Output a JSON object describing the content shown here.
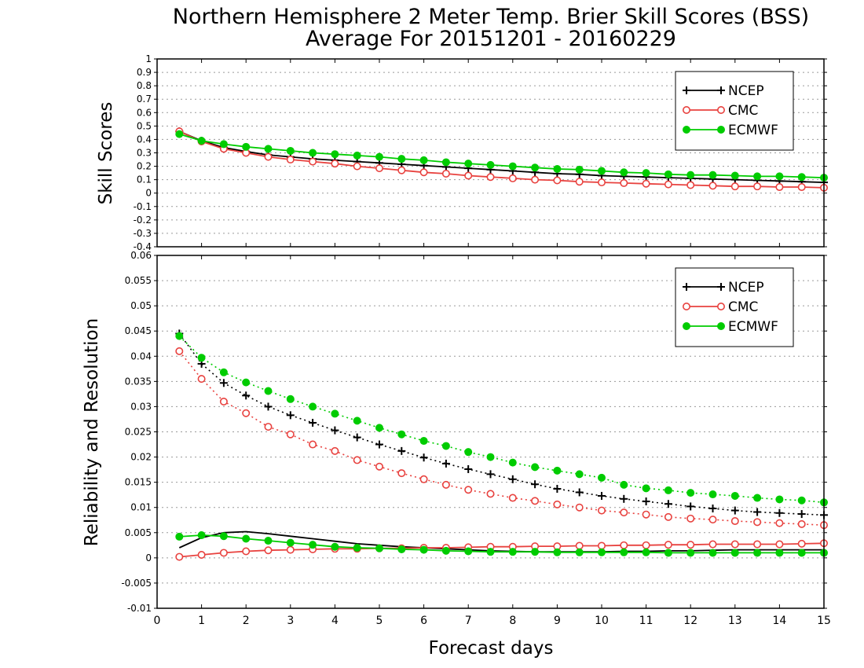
{
  "title": {
    "line1": "Northern Hemisphere 2 Meter Temp. Brier Skill Scores (BSS)",
    "line2": "Average For 20151201 - 20160229"
  },
  "colors": {
    "NCEP": "#000000",
    "CMC": "#e8423f",
    "ECMWF": "#00cc00",
    "grid": "#9a9a9a"
  },
  "chart_data": [
    {
      "type": "line",
      "title": "Northern Hemisphere 2 Meter Temp. Brier Skill Scores (BSS)",
      "ylabel": "Skill Scores",
      "xlabel": "",
      "xlim": [
        0,
        15
      ],
      "ylim": [
        -0.4,
        1
      ],
      "yticks": [
        -0.4,
        -0.3,
        -0.2,
        -0.1,
        0,
        0.1,
        0.2,
        0.3,
        0.4,
        0.5,
        0.6,
        0.7,
        0.8,
        0.9,
        1
      ],
      "ytick_labels": [
        "-0.4",
        "-0.3",
        "-0.2",
        "-0.1",
        "0",
        "0.1",
        "0.2",
        "0.3",
        "0.4",
        "0.5",
        "0.6",
        "0.7",
        "0.8",
        "0.9",
        "1"
      ],
      "grid": true,
      "legend_position": "top-right",
      "x": [
        0.5,
        1,
        1.5,
        2,
        2.5,
        3,
        3.5,
        4,
        4.5,
        5,
        5.5,
        6,
        6.5,
        7,
        7.5,
        8,
        8.5,
        9,
        9.5,
        10,
        10.5,
        11,
        11.5,
        12,
        12.5,
        13,
        13.5,
        14,
        14.5,
        15
      ],
      "series": [
        {
          "name": "NCEP",
          "marker": "plus",
          "style": "solid",
          "values": [
            0.46,
            0.39,
            0.34,
            0.31,
            0.285,
            0.27,
            0.255,
            0.245,
            0.235,
            0.225,
            0.215,
            0.205,
            0.195,
            0.185,
            0.175,
            0.165,
            0.155,
            0.145,
            0.14,
            0.13,
            0.125,
            0.12,
            0.115,
            0.11,
            0.105,
            0.1,
            0.095,
            0.09,
            0.085,
            0.08
          ]
        },
        {
          "name": "CMC",
          "marker": "open-circle",
          "style": "solid",
          "values": [
            0.46,
            0.385,
            0.33,
            0.3,
            0.27,
            0.25,
            0.235,
            0.22,
            0.2,
            0.185,
            0.17,
            0.155,
            0.145,
            0.13,
            0.12,
            0.11,
            0.1,
            0.095,
            0.085,
            0.08,
            0.075,
            0.07,
            0.065,
            0.06,
            0.055,
            0.05,
            0.05,
            0.045,
            0.045,
            0.04
          ]
        },
        {
          "name": "ECMWF",
          "marker": "filled-circle",
          "style": "solid",
          "values": [
            0.44,
            0.39,
            0.365,
            0.345,
            0.33,
            0.315,
            0.3,
            0.29,
            0.28,
            0.27,
            0.255,
            0.245,
            0.23,
            0.22,
            0.21,
            0.2,
            0.19,
            0.18,
            0.175,
            0.165,
            0.155,
            0.15,
            0.14,
            0.135,
            0.135,
            0.13,
            0.125,
            0.125,
            0.12,
            0.115
          ]
        }
      ]
    },
    {
      "type": "line",
      "ylabel": "Reliability and Resolution",
      "xlabel": "Forecast days",
      "xlim": [
        0,
        15
      ],
      "ylim": [
        -0.01,
        0.06
      ],
      "xticks": [
        0,
        1,
        2,
        3,
        4,
        5,
        6,
        7,
        8,
        9,
        10,
        11,
        12,
        13,
        14,
        15
      ],
      "yticks": [
        -0.01,
        -0.005,
        0,
        0.005,
        0.01,
        0.015,
        0.02,
        0.025,
        0.03,
        0.035,
        0.04,
        0.045,
        0.05,
        0.055,
        0.06
      ],
      "ytick_labels": [
        "-0.01",
        "-0.005",
        "0",
        "0.005",
        "0.01",
        "0.015",
        "0.02",
        "0.025",
        "0.03",
        "0.035",
        "0.04",
        "0.045",
        "0.05",
        "0.055",
        "0.06"
      ],
      "grid": true,
      "legend_position": "top-right",
      "x": [
        0.5,
        1,
        1.5,
        2,
        2.5,
        3,
        3.5,
        4,
        4.5,
        5,
        5.5,
        6,
        6.5,
        7,
        7.5,
        8,
        8.5,
        9,
        9.5,
        10,
        10.5,
        11,
        11.5,
        12,
        12.5,
        13,
        13.5,
        14,
        14.5,
        15
      ],
      "series": [
        {
          "name": "NCEP",
          "marker": "plus",
          "style": "dotted",
          "values": [
            0.0445,
            0.0385,
            0.0347,
            0.0322,
            0.03,
            0.0283,
            0.0268,
            0.0253,
            0.0239,
            0.0225,
            0.0212,
            0.0199,
            0.0187,
            0.0176,
            0.0166,
            0.0156,
            0.0146,
            0.0137,
            0.013,
            0.0123,
            0.0117,
            0.0112,
            0.0107,
            0.0102,
            0.0098,
            0.0094,
            0.0091,
            0.0089,
            0.0087,
            0.0085
          ]
        },
        {
          "name": "CMC",
          "marker": "open-circle",
          "style": "dotted",
          "values": [
            0.041,
            0.0355,
            0.031,
            0.0287,
            0.026,
            0.0245,
            0.0225,
            0.0212,
            0.0194,
            0.0181,
            0.0168,
            0.0156,
            0.0145,
            0.0135,
            0.0127,
            0.0119,
            0.0113,
            0.0106,
            0.01,
            0.0094,
            0.009,
            0.0086,
            0.0081,
            0.0078,
            0.0076,
            0.0073,
            0.0071,
            0.0069,
            0.0067,
            0.0065
          ]
        },
        {
          "name": "ECMWF",
          "marker": "filled-circle",
          "style": "dotted",
          "values": [
            0.044,
            0.0397,
            0.0368,
            0.0348,
            0.0331,
            0.0315,
            0.03,
            0.0286,
            0.0272,
            0.0258,
            0.0245,
            0.0232,
            0.0222,
            0.021,
            0.02,
            0.0189,
            0.018,
            0.0173,
            0.0166,
            0.0159,
            0.0145,
            0.0138,
            0.0134,
            0.0129,
            0.0126,
            0.0123,
            0.0119,
            0.0116,
            0.0114,
            0.011
          ]
        },
        {
          "name": "NCEP",
          "marker": "none",
          "style": "solid",
          "values": [
            0.002,
            0.004,
            0.005,
            0.0052,
            0.0048,
            0.0043,
            0.0038,
            0.0033,
            0.0028,
            0.0025,
            0.0022,
            0.002,
            0.0018,
            0.0016,
            0.0014,
            0.0013,
            0.0012,
            0.0012,
            0.0012,
            0.0012,
            0.0013,
            0.0013,
            0.0014,
            0.0014,
            0.0015,
            0.0016,
            0.0016,
            0.0016,
            0.0016,
            0.0016
          ]
        },
        {
          "name": "CMC",
          "marker": "open-circle",
          "style": "solid",
          "values": [
            0.0002,
            0.0006,
            0.001,
            0.0013,
            0.0015,
            0.0016,
            0.0017,
            0.0018,
            0.0018,
            0.0019,
            0.0019,
            0.002,
            0.002,
            0.0021,
            0.0022,
            0.0022,
            0.0023,
            0.0023,
            0.0024,
            0.0024,
            0.0025,
            0.0025,
            0.0026,
            0.0026,
            0.0027,
            0.0027,
            0.0027,
            0.0027,
            0.0028,
            0.0029
          ]
        },
        {
          "name": "ECMWF",
          "marker": "filled-circle",
          "style": "solid",
          "values": [
            0.0042,
            0.0045,
            0.0043,
            0.0038,
            0.0034,
            0.003,
            0.0026,
            0.0022,
            0.002,
            0.0019,
            0.0017,
            0.0016,
            0.0014,
            0.0013,
            0.0012,
            0.0012,
            0.0012,
            0.0011,
            0.0011,
            0.0011,
            0.0011,
            0.0011,
            0.001,
            0.001,
            0.001,
            0.001,
            0.001,
            0.001,
            0.001,
            0.001
          ]
        }
      ]
    }
  ],
  "legend": [
    {
      "name": "NCEP",
      "marker": "plus"
    },
    {
      "name": "CMC",
      "marker": "open-circle"
    },
    {
      "name": "ECMWF",
      "marker": "filled-circle"
    }
  ]
}
